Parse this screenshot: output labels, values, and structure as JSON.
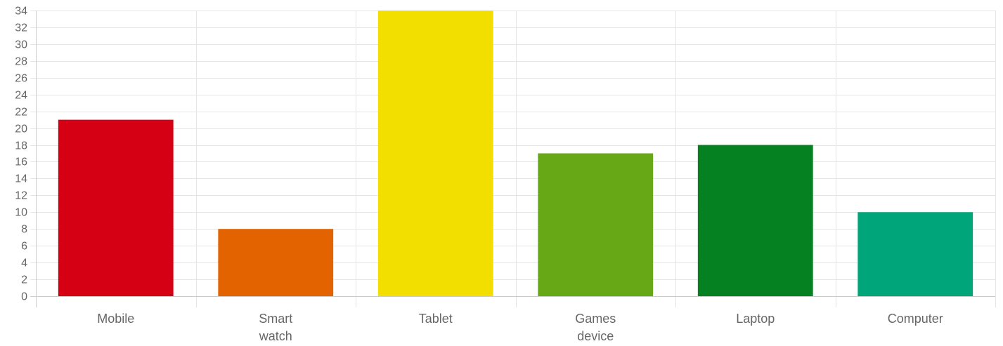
{
  "chart_data": {
    "type": "bar",
    "categories": [
      [
        "Mobile"
      ],
      [
        "Smart",
        "watch"
      ],
      [
        "Tablet"
      ],
      [
        "Games",
        "device"
      ],
      [
        "Laptop"
      ],
      [
        "Computer"
      ]
    ],
    "values": [
      21,
      8,
      34,
      17,
      18,
      10
    ],
    "colors": [
      "#d50014",
      "#e26300",
      "#f2df00",
      "#66a816",
      "#068121",
      "#00a679"
    ],
    "ylim": [
      0,
      34
    ],
    "ytick_step": 2,
    "grid": true,
    "legend": "none",
    "title": "",
    "xlabel": "",
    "ylabel": ""
  }
}
